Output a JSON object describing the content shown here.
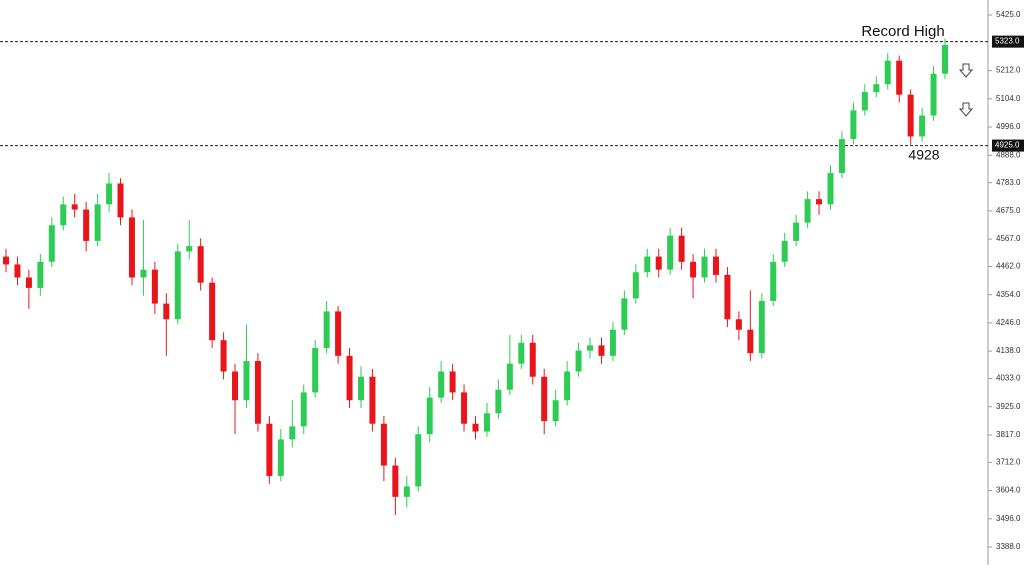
{
  "chart_data": {
    "type": "candlestick",
    "open": [
      4500,
      4470,
      4420,
      4380,
      4480,
      4620,
      4700,
      4680,
      4560,
      4700,
      4780,
      4650,
      4420,
      4450,
      4320,
      4260,
      4520,
      4540,
      4400,
      4180,
      4060,
      3950,
      4100,
      3860,
      3660,
      3800,
      3850,
      3980,
      4150,
      4290,
      4120,
      3950,
      4040,
      3860,
      3700,
      3580,
      3620,
      3820,
      3960,
      4060,
      3980,
      3860,
      3830,
      3900,
      3990,
      4090,
      4170,
      4040,
      3870,
      3950,
      4060,
      4140,
      4160,
      4120,
      4220,
      4340,
      4440,
      4500,
      4450,
      4580,
      4480,
      4420,
      4500,
      4430,
      4260,
      4220,
      4130,
      4330,
      4480,
      4560,
      4630,
      4720,
      4700,
      4820,
      4950,
      5060,
      5130,
      5160,
      5250,
      5120,
      4960,
      5040,
      5200
    ],
    "high": [
      4530,
      4500,
      4450,
      4510,
      4650,
      4730,
      4740,
      4710,
      4740,
      4820,
      4800,
      4680,
      4640,
      4480,
      4360,
      4550,
      4640,
      4570,
      4420,
      4210,
      4090,
      4240,
      4130,
      3890,
      3840,
      3950,
      4010,
      4180,
      4330,
      4310,
      4150,
      4080,
      4070,
      3890,
      3730,
      3660,
      3850,
      4000,
      4100,
      4090,
      4010,
      3890,
      3940,
      4030,
      4200,
      4200,
      4200,
      4070,
      3990,
      4100,
      4170,
      4190,
      4190,
      4250,
      4370,
      4470,
      4530,
      4530,
      4610,
      4610,
      4510,
      4530,
      4530,
      4460,
      4290,
      4370,
      4360,
      4510,
      4590,
      4660,
      4750,
      4750,
      4850,
      4980,
      5090,
      5160,
      5190,
      5280,
      5270,
      5140,
      5070,
      5230,
      5335
    ],
    "low": [
      4440,
      4390,
      4300,
      4350,
      4460,
      4600,
      4650,
      4520,
      4540,
      4670,
      4620,
      4390,
      4350,
      4280,
      4120,
      4240,
      4490,
      4370,
      4150,
      4030,
      3820,
      3920,
      3830,
      3630,
      3640,
      3770,
      3820,
      3960,
      4130,
      4090,
      3920,
      3920,
      3830,
      3640,
      3510,
      3540,
      3600,
      3790,
      3940,
      3950,
      3830,
      3800,
      3810,
      3880,
      3970,
      4070,
      4010,
      3820,
      3850,
      3930,
      4040,
      4110,
      4090,
      4100,
      4200,
      4320,
      4420,
      4420,
      4430,
      4450,
      4340,
      4400,
      4400,
      4230,
      4180,
      4100,
      4110,
      4310,
      4460,
      4540,
      4610,
      4660,
      4680,
      4800,
      4930,
      5040,
      5110,
      5140,
      5090,
      4928,
      4940,
      5020,
      5180
    ],
    "close": [
      4470,
      4420,
      4380,
      4480,
      4620,
      4700,
      4680,
      4560,
      4700,
      4780,
      4650,
      4420,
      4450,
      4320,
      4260,
      4520,
      4540,
      4400,
      4180,
      4060,
      3950,
      4100,
      3860,
      3660,
      3800,
      3850,
      3980,
      4150,
      4290,
      4120,
      3950,
      4040,
      3860,
      3700,
      3580,
      3620,
      3820,
      3960,
      4060,
      3980,
      3860,
      3830,
      3900,
      3990,
      4090,
      4170,
      4040,
      3870,
      3950,
      4060,
      4140,
      4160,
      4120,
      4220,
      4340,
      4440,
      4500,
      4450,
      4580,
      4480,
      4420,
      4500,
      4430,
      4260,
      4220,
      4130,
      4330,
      4480,
      4560,
      4630,
      4720,
      4700,
      4820,
      4950,
      5060,
      5130,
      5160,
      5250,
      5120,
      4960,
      5040,
      5200,
      5310
    ],
    "up_color": "#2ecc55",
    "down_color": "#e8151b",
    "ylim": [
      3388,
      5425
    ],
    "yticks": [
      {
        "value": 5425,
        "label": "5425.0"
      },
      {
        "value": 5212,
        "label": "5212.0"
      },
      {
        "value": 5104,
        "label": "5104.0"
      },
      {
        "value": 4996,
        "label": "4996.0"
      },
      {
        "value": 4888,
        "label": "4888.0"
      },
      {
        "value": 4783,
        "label": "4783.0"
      },
      {
        "value": 4675,
        "label": "4675.0"
      },
      {
        "value": 4567,
        "label": "4567.0"
      },
      {
        "value": 4462,
        "label": "4462.0"
      },
      {
        "value": 4354,
        "label": "4354.0"
      },
      {
        "value": 4246,
        "label": "4246.0"
      },
      {
        "value": 4138,
        "label": "4138.0"
      },
      {
        "value": 4033,
        "label": "4033.0"
      },
      {
        "value": 3925,
        "label": "3925.0"
      },
      {
        "value": 3817,
        "label": "3817.0"
      },
      {
        "value": 3712,
        "label": "3712.0"
      },
      {
        "value": 3604,
        "label": "3604.0"
      },
      {
        "value": 3496,
        "label": "3496.0"
      },
      {
        "value": 3388,
        "label": "3388.0"
      }
    ],
    "levels": [
      {
        "value": 5323,
        "label": "5323.0"
      },
      {
        "value": 4925,
        "label": "4925.0"
      }
    ],
    "annotations": [
      "Record High",
      "4928"
    ]
  }
}
